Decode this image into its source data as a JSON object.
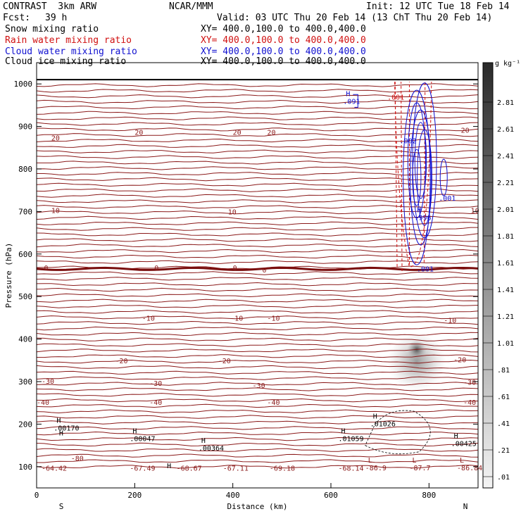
{
  "header": {
    "title_left": "CONTRAST  3km ARW",
    "center": "NCAR/MMM",
    "init": "Init: 12 UTC Tue 18 Feb 14",
    "fcst_label": "Fcst:",
    "fcst_value": "39 h",
    "valid": "Valid: 03 UTC Thu 20 Feb 14 (13 ChT Thu 20 Feb 14)",
    "fields": [
      {
        "name": "Snow mixing ratio",
        "xy": "XY= 400.0,100.0 to 400.0,400.0",
        "color": "#000000"
      },
      {
        "name": "Rain water mixing ratio",
        "xy": "XY= 400.0,100.0 to 400.0,400.0",
        "color": "#d01010"
      },
      {
        "name": "Cloud water mixing ratio",
        "xy": "XY= 400.0,100.0 to 400.0,400.0",
        "color": "#1010d0"
      },
      {
        "name": "Cloud ice mixing ratio",
        "xy": "XY= 400.0,100.0 to 400.0,400.0",
        "color": "#000000"
      }
    ]
  },
  "chart_data": {
    "type": "heatmap",
    "xlabel": "Distance (km)",
    "ylabel": "Pressure (hPa)",
    "xlim": [
      0,
      900
    ],
    "ylim": [
      1050,
      50
    ],
    "xticks": [
      0,
      200,
      400,
      600,
      800
    ],
    "yticks": [
      100,
      200,
      300,
      400,
      500,
      600,
      700,
      800,
      900,
      1000
    ],
    "x_end_labels": {
      "left": "S",
      "right": "N"
    },
    "colorbar": {
      "unit": "g kg⁻¹",
      "labels": [
        "2.81",
        "2.61",
        "2.41",
        "2.21",
        "2.01",
        "1.81",
        "1.61",
        "1.41",
        "1.21",
        "1.01",
        ".81",
        ".61",
        ".41",
        ".21",
        ".01"
      ]
    },
    "temperature_contour_labels": [
      {
        "x": 10,
        "p": 97,
        "text": "-64.42"
      },
      {
        "x": 190,
        "p": 97,
        "text": "-67.49"
      },
      {
        "x": 285,
        "p": 97,
        "text": "-68.67"
      },
      {
        "x": 380,
        "p": 97,
        "text": "-67.11"
      },
      {
        "x": 475,
        "p": 97,
        "text": "-69.18"
      },
      {
        "x": 615,
        "p": 97,
        "text": "-68.14"
      },
      {
        "x": 70,
        "p": 120,
        "text": "-80"
      },
      {
        "x": 0,
        "p": 252,
        "text": "-40"
      },
      {
        "x": 230,
        "p": 252,
        "text": "-40"
      },
      {
        "x": 470,
        "p": 252,
        "text": "-40"
      },
      {
        "x": 870,
        "p": 252,
        "text": "-40"
      },
      {
        "x": 10,
        "p": 302,
        "text": "-30"
      },
      {
        "x": 230,
        "p": 297,
        "text": "-30"
      },
      {
        "x": 440,
        "p": 292,
        "text": "-30"
      },
      {
        "x": 870,
        "p": 299,
        "text": "-30"
      },
      {
        "x": 160,
        "p": 350,
        "text": "-20"
      },
      {
        "x": 370,
        "p": 350,
        "text": "-20"
      },
      {
        "x": 850,
        "p": 352,
        "text": "-20"
      },
      {
        "x": 215,
        "p": 450,
        "text": "-10"
      },
      {
        "x": 395,
        "p": 450,
        "text": "-10"
      },
      {
        "x": 470,
        "p": 450,
        "text": "-10"
      },
      {
        "x": 830,
        "p": 445,
        "text": "-10"
      },
      {
        "x": 15,
        "p": 568,
        "text": "0"
      },
      {
        "x": 240,
        "p": 568,
        "text": "0"
      },
      {
        "x": 400,
        "p": 568,
        "text": "0"
      },
      {
        "x": 460,
        "p": 563,
        "text": "0"
      },
      {
        "x": 30,
        "p": 703,
        "text": "10"
      },
      {
        "x": 390,
        "p": 700,
        "text": "10"
      },
      {
        "x": 885,
        "p": 703,
        "text": "10"
      },
      {
        "x": 30,
        "p": 874,
        "text": "20"
      },
      {
        "x": 200,
        "p": 887,
        "text": "20"
      },
      {
        "x": 400,
        "p": 887,
        "text": "20"
      },
      {
        "x": 470,
        "p": 887,
        "text": "20"
      },
      {
        "x": 865,
        "p": 892,
        "text": "20"
      }
    ],
    "high_low_markers": [
      {
        "x": 40,
        "p": 170,
        "mark": "H",
        "value": ""
      },
      {
        "x": 35,
        "p": 200,
        "mark": "H",
        "value": ".00170"
      },
      {
        "x": 190,
        "p": 175,
        "mark": "H",
        "value": ".00047"
      },
      {
        "x": 330,
        "p": 153,
        "mark": "H",
        "value": ".00364"
      },
      {
        "x": 615,
        "p": 175,
        "mark": "H",
        "value": ".01059"
      },
      {
        "x": 680,
        "p": 210,
        "mark": "H",
        "value": ".01026"
      },
      {
        "x": 845,
        "p": 163,
        "mark": "H",
        "value": ".00425"
      },
      {
        "x": 260,
        "p": 93,
        "mark": "H",
        "value": ""
      },
      {
        "x": 670,
        "p": 106,
        "mark": "L",
        "value": "-86.9"
      },
      {
        "x": 760,
        "p": 106,
        "mark": "L",
        "value": "-87.7"
      },
      {
        "x": 857,
        "p": 106,
        "mark": "L",
        "value": "-86.84"
      },
      {
        "x": 775,
        "p": 574,
        "mark": "",
        "value": ".001"
      },
      {
        "x": 770,
        "p": 695,
        "mark": "H",
        "value": ".996"
      },
      {
        "x": 820,
        "p": 740,
        "mark": "",
        "value": ".001"
      },
      {
        "x": 740,
        "p": 875,
        "mark": "",
        "value": ".002"
      },
      {
        "x": 625,
        "p": 968,
        "mark": "H",
        "value": ".091"
      },
      {
        "x": 715,
        "p": 978,
        "mark": "",
        "value": ".001"
      }
    ],
    "snow_maximum": {
      "x": 775,
      "p_top": 150,
      "p_bottom": 530,
      "peak_value": 2.6
    },
    "melting_level_hPa": 565,
    "surface_hPa": 1010
  }
}
